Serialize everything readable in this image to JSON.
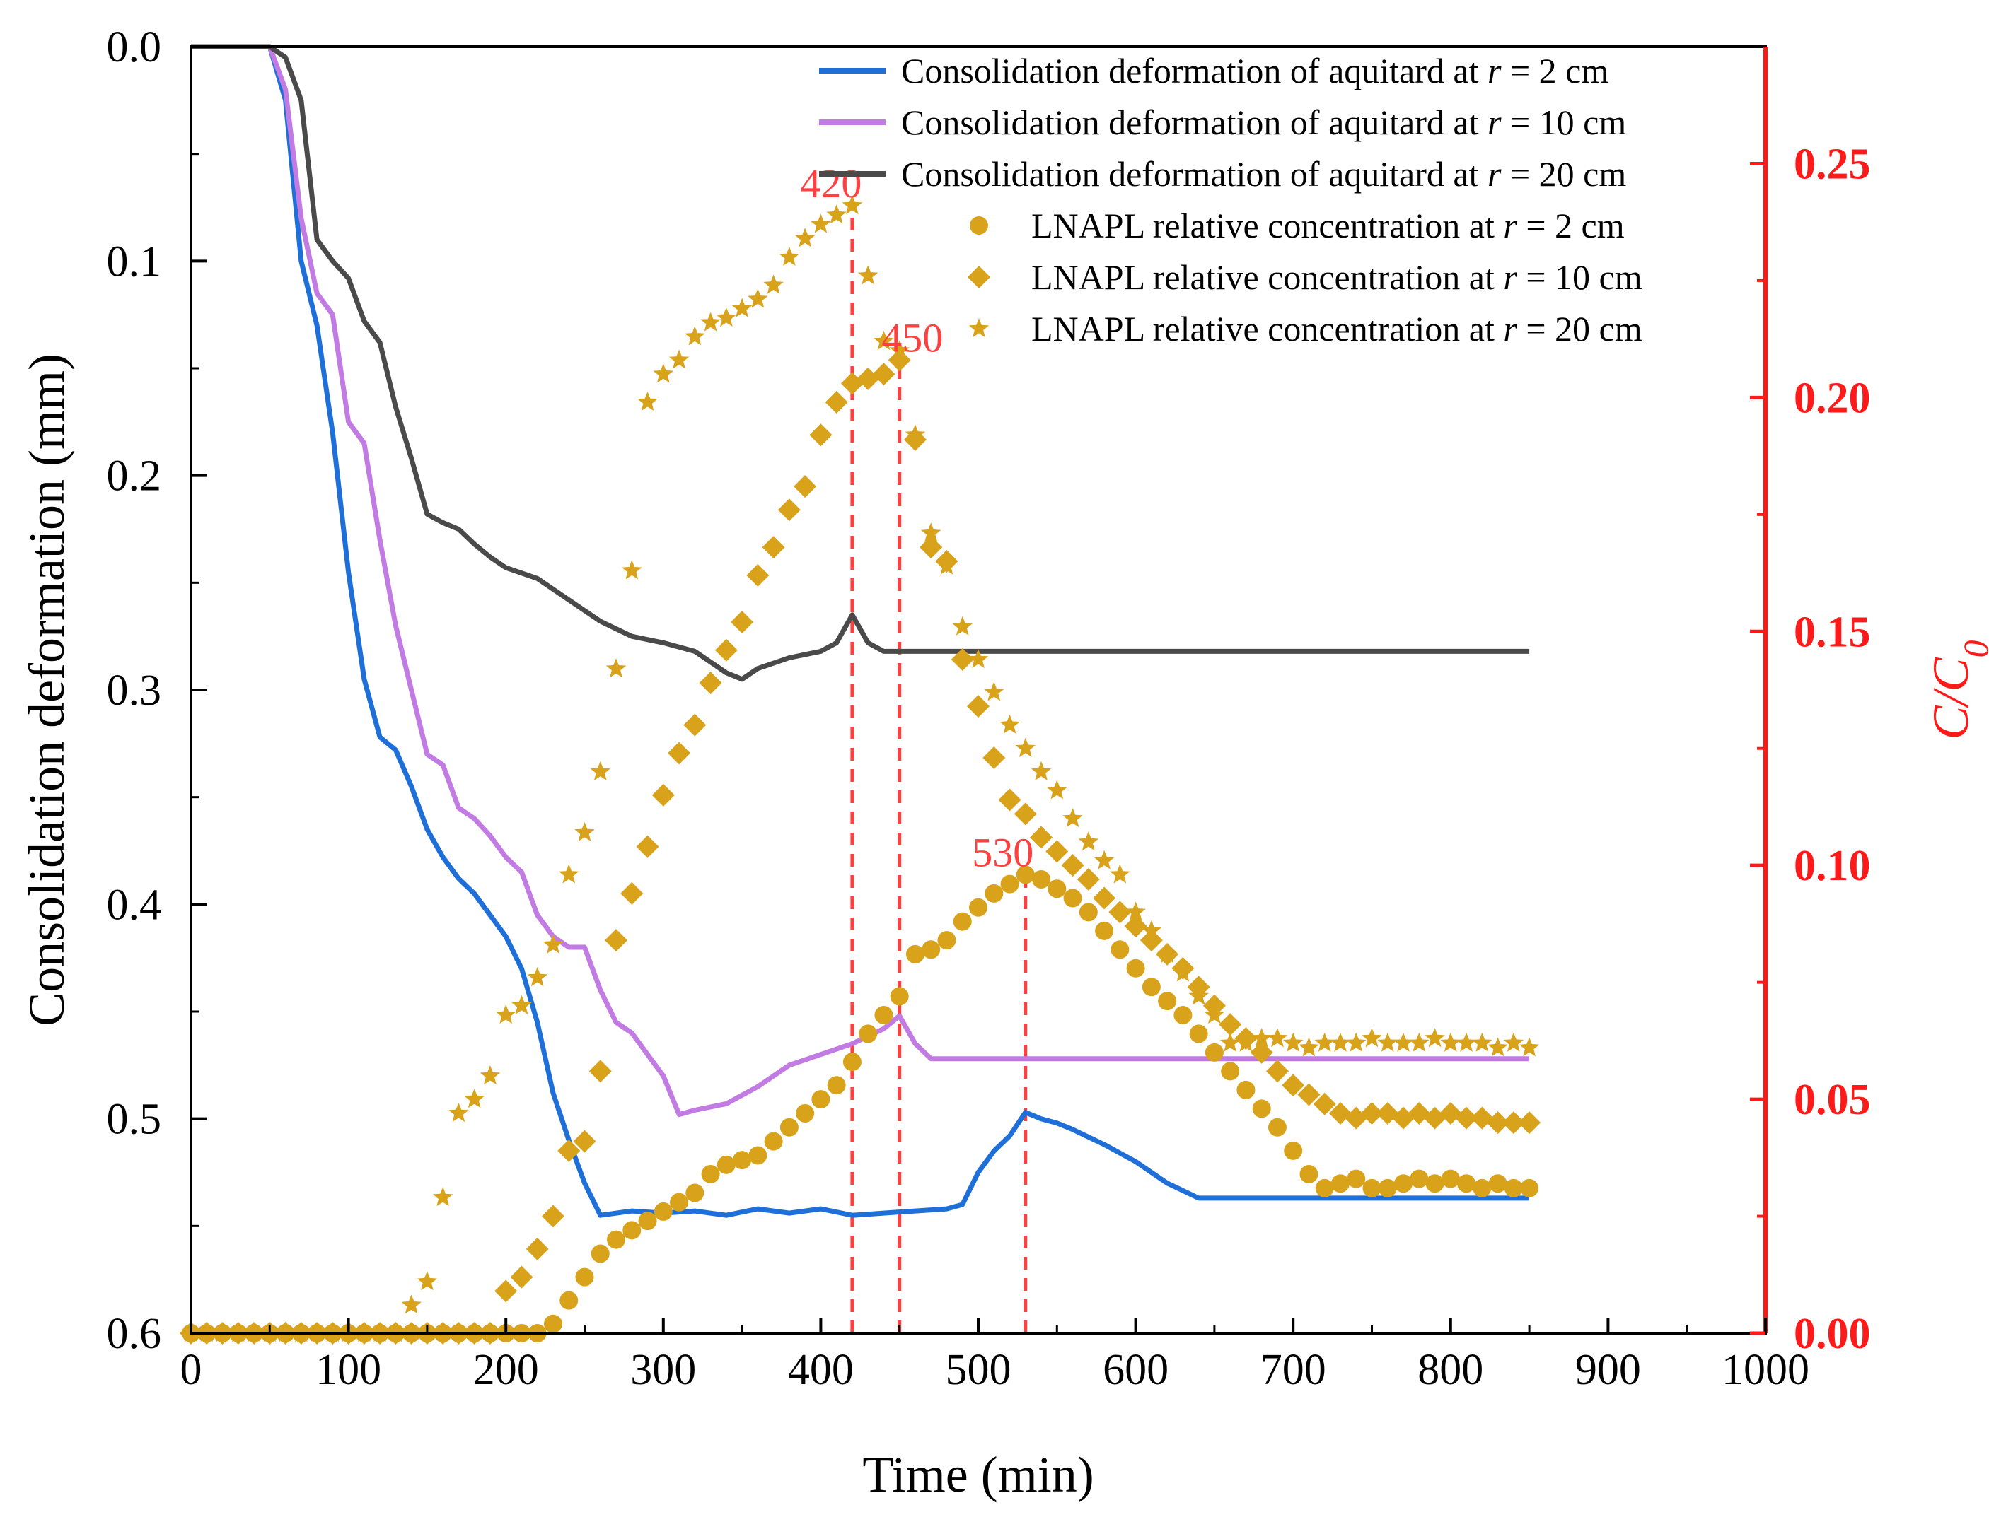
{
  "chart_data": {
    "type": "line",
    "xlabel": "Time (min)",
    "ylabel": "Consolidation deformation (mm)",
    "y2label": "C/C0",
    "xlim": [
      0,
      1000
    ],
    "ylim": [
      0,
      0.6
    ],
    "y_inverted": true,
    "y2lim": [
      0,
      0.275
    ],
    "x_ticks": [
      0,
      100,
      200,
      300,
      400,
      500,
      600,
      700,
      800,
      900,
      1000
    ],
    "y_ticks": [
      "0.0",
      "0.1",
      "0.2",
      "0.3",
      "0.4",
      "0.5",
      "0.6"
    ],
    "y2_ticks": [
      "0.00",
      "0.05",
      "0.10",
      "0.15",
      "0.20",
      "0.25"
    ],
    "grid": false,
    "legend_position": "top-right",
    "colors": {
      "blue": "#1e70d8",
      "purple": "#c17be3",
      "dark": "#4a4a4a",
      "gold": "#d9a21b",
      "red_axis": "#ff1a1a",
      "annotation": "#ff4040"
    },
    "series": [
      {
        "name": "Consolidation deformation of aquitard at r = 2 cm",
        "axis": "left",
        "kind": "line",
        "color_key": "blue",
        "x": [
          0,
          50,
          60,
          70,
          80,
          90,
          100,
          110,
          120,
          130,
          140,
          150,
          160,
          170,
          180,
          190,
          200,
          210,
          220,
          230,
          240,
          250,
          260,
          280,
          300,
          320,
          340,
          360,
          380,
          400,
          420,
          440,
          460,
          480,
          490,
          500,
          510,
          520,
          530,
          540,
          550,
          560,
          580,
          600,
          620,
          640,
          700,
          750,
          800,
          850
        ],
        "values": [
          0.0,
          0.0,
          0.025,
          0.1,
          0.13,
          0.18,
          0.245,
          0.295,
          0.322,
          0.328,
          0.345,
          0.365,
          0.378,
          0.388,
          0.395,
          0.405,
          0.415,
          0.43,
          0.455,
          0.488,
          0.51,
          0.53,
          0.545,
          0.543,
          0.544,
          0.543,
          0.545,
          0.542,
          0.544,
          0.542,
          0.545,
          0.544,
          0.543,
          0.542,
          0.54,
          0.525,
          0.515,
          0.508,
          0.497,
          0.5,
          0.502,
          0.505,
          0.512,
          0.52,
          0.53,
          0.537,
          0.537,
          0.537,
          0.537,
          0.537
        ]
      },
      {
        "name": "Consolidation deformation of aquitard at r = 10 cm",
        "axis": "left",
        "kind": "line",
        "color_key": "purple",
        "x": [
          0,
          50,
          60,
          70,
          80,
          90,
          100,
          110,
          120,
          130,
          140,
          150,
          160,
          170,
          180,
          190,
          200,
          210,
          220,
          230,
          240,
          250,
          260,
          270,
          280,
          290,
          300,
          310,
          320,
          340,
          360,
          380,
          400,
          420,
          440,
          450,
          460,
          470,
          500,
          600,
          700,
          800,
          850
        ],
        "values": [
          0.0,
          0.0,
          0.02,
          0.08,
          0.115,
          0.125,
          0.175,
          0.185,
          0.23,
          0.27,
          0.3,
          0.33,
          0.335,
          0.355,
          0.36,
          0.368,
          0.378,
          0.385,
          0.405,
          0.415,
          0.42,
          0.42,
          0.44,
          0.455,
          0.46,
          0.47,
          0.48,
          0.498,
          0.496,
          0.493,
          0.485,
          0.475,
          0.47,
          0.465,
          0.458,
          0.452,
          0.465,
          0.472,
          0.472,
          0.472,
          0.472,
          0.472,
          0.472
        ]
      },
      {
        "name": "Consolidation deformation of aquitard at r = 20 cm",
        "axis": "left",
        "kind": "line",
        "color_key": "dark",
        "x": [
          0,
          50,
          60,
          70,
          80,
          90,
          100,
          110,
          120,
          130,
          140,
          150,
          160,
          170,
          180,
          190,
          200,
          220,
          240,
          260,
          280,
          300,
          320,
          340,
          350,
          360,
          380,
          400,
          410,
          420,
          430,
          440,
          450,
          500,
          600,
          700,
          800,
          850
        ],
        "values": [
          0.0,
          0.0,
          0.005,
          0.025,
          0.09,
          0.1,
          0.108,
          0.128,
          0.138,
          0.168,
          0.192,
          0.218,
          0.222,
          0.225,
          0.232,
          0.238,
          0.243,
          0.248,
          0.258,
          0.268,
          0.275,
          0.278,
          0.282,
          0.292,
          0.295,
          0.29,
          0.285,
          0.282,
          0.278,
          0.265,
          0.278,
          0.282,
          0.282,
          0.282,
          0.282,
          0.282,
          0.282,
          0.282
        ]
      },
      {
        "name": "LNAPL relative concentration at r = 2 cm",
        "axis": "right",
        "kind": "scatter",
        "marker": "circle",
        "color_key": "gold",
        "x": [
          0,
          10,
          20,
          30,
          40,
          50,
          60,
          70,
          80,
          90,
          100,
          110,
          120,
          130,
          140,
          150,
          160,
          170,
          180,
          190,
          200,
          210,
          220,
          230,
          240,
          250,
          260,
          270,
          280,
          290,
          300,
          310,
          320,
          330,
          340,
          350,
          360,
          370,
          380,
          390,
          400,
          410,
          420,
          430,
          440,
          450,
          460,
          470,
          480,
          490,
          500,
          510,
          520,
          530,
          540,
          550,
          560,
          570,
          580,
          590,
          600,
          610,
          620,
          630,
          640,
          650,
          660,
          670,
          680,
          690,
          700,
          710,
          720,
          730,
          740,
          750,
          760,
          770,
          780,
          790,
          800,
          810,
          820,
          830,
          840,
          850
        ],
        "values": [
          0,
          0,
          0,
          0,
          0,
          0,
          0,
          0,
          0,
          0,
          0,
          0,
          0,
          0,
          0,
          0,
          0,
          0,
          0,
          0,
          0,
          0,
          0,
          0.002,
          0.007,
          0.012,
          0.017,
          0.02,
          0.022,
          0.024,
          0.026,
          0.028,
          0.03,
          0.034,
          0.036,
          0.037,
          0.038,
          0.041,
          0.044,
          0.047,
          0.05,
          0.053,
          0.058,
          0.064,
          0.068,
          0.072,
          0.081,
          0.082,
          0.084,
          0.088,
          0.091,
          0.094,
          0.096,
          0.098,
          0.097,
          0.095,
          0.093,
          0.09,
          0.086,
          0.082,
          0.078,
          0.074,
          0.071,
          0.068,
          0.064,
          0.06,
          0.056,
          0.052,
          0.048,
          0.044,
          0.039,
          0.034,
          0.031,
          0.032,
          0.033,
          0.031,
          0.031,
          0.032,
          0.033,
          0.032,
          0.033,
          0.032,
          0.031,
          0.032,
          0.031,
          0.031
        ]
      },
      {
        "name": "LNAPL relative concentration at r = 10 cm",
        "axis": "right",
        "kind": "scatter",
        "marker": "diamond",
        "color_key": "gold",
        "x": [
          0,
          10,
          20,
          30,
          40,
          50,
          60,
          70,
          80,
          90,
          100,
          110,
          120,
          130,
          140,
          150,
          160,
          170,
          180,
          190,
          200,
          210,
          220,
          230,
          240,
          250,
          260,
          270,
          280,
          290,
          300,
          310,
          320,
          330,
          340,
          350,
          360,
          370,
          380,
          390,
          400,
          410,
          420,
          430,
          440,
          450,
          460,
          470,
          480,
          490,
          500,
          510,
          520,
          530,
          540,
          550,
          560,
          570,
          580,
          590,
          600,
          610,
          620,
          630,
          640,
          650,
          660,
          670,
          680,
          690,
          700,
          710,
          720,
          730,
          740,
          750,
          760,
          770,
          780,
          790,
          800,
          810,
          820,
          830,
          840,
          850
        ],
        "values": [
          0,
          0,
          0,
          0,
          0,
          0,
          0,
          0,
          0,
          0,
          0,
          0,
          0,
          0,
          0,
          0,
          0,
          0,
          0,
          0,
          0.009,
          0.012,
          0.018,
          0.025,
          0.039,
          0.041,
          0.056,
          0.084,
          0.094,
          0.104,
          0.115,
          0.124,
          0.13,
          0.139,
          0.146,
          0.152,
          0.162,
          0.168,
          0.176,
          0.181,
          0.192,
          0.199,
          0.203,
          0.204,
          0.205,
          0.208,
          0.191,
          0.168,
          0.165,
          0.144,
          0.134,
          0.123,
          0.114,
          0.111,
          0.106,
          0.103,
          0.1,
          0.097,
          0.093,
          0.09,
          0.087,
          0.084,
          0.081,
          0.078,
          0.074,
          0.07,
          0.066,
          0.063,
          0.06,
          0.056,
          0.053,
          0.051,
          0.049,
          0.047,
          0.046,
          0.047,
          0.047,
          0.046,
          0.047,
          0.046,
          0.047,
          0.046,
          0.046,
          0.045,
          0.045,
          0.045
        ]
      },
      {
        "name": "LNAPL relative concentration at r = 20 cm",
        "axis": "right",
        "kind": "scatter",
        "marker": "star",
        "color_key": "gold",
        "x": [
          0,
          10,
          20,
          30,
          40,
          50,
          60,
          70,
          80,
          90,
          100,
          110,
          120,
          130,
          140,
          150,
          160,
          170,
          180,
          190,
          200,
          210,
          220,
          230,
          240,
          250,
          260,
          270,
          280,
          290,
          300,
          310,
          320,
          330,
          340,
          350,
          360,
          370,
          380,
          390,
          400,
          410,
          420,
          430,
          440,
          450,
          460,
          470,
          480,
          490,
          500,
          510,
          520,
          530,
          540,
          550,
          560,
          570,
          580,
          590,
          600,
          610,
          620,
          630,
          640,
          650,
          660,
          670,
          680,
          690,
          700,
          710,
          720,
          730,
          740,
          750,
          760,
          770,
          780,
          790,
          800,
          810,
          820,
          830,
          840,
          850
        ],
        "values": [
          0,
          0,
          0,
          0,
          0,
          0,
          0,
          0,
          0,
          0,
          0,
          0,
          0,
          0,
          0.006,
          0.011,
          0.029,
          0.047,
          0.05,
          0.055,
          0.068,
          0.07,
          0.076,
          0.083,
          0.098,
          0.107,
          0.12,
          0.142,
          0.163,
          0.199,
          0.205,
          0.208,
          0.213,
          0.216,
          0.217,
          0.219,
          0.221,
          0.224,
          0.23,
          0.234,
          0.237,
          0.239,
          0.241,
          0.226,
          0.212,
          0.21,
          0.192,
          0.171,
          0.164,
          0.151,
          0.144,
          0.137,
          0.13,
          0.125,
          0.12,
          0.116,
          0.11,
          0.105,
          0.101,
          0.098,
          0.09,
          0.086,
          0.081,
          0.077,
          0.072,
          0.068,
          0.062,
          0.062,
          0.063,
          0.063,
          0.062,
          0.061,
          0.062,
          0.062,
          0.062,
          0.063,
          0.062,
          0.062,
          0.062,
          0.063,
          0.062,
          0.062,
          0.062,
          0.061,
          0.062,
          0.061
        ]
      }
    ],
    "annotations": [
      {
        "label": "420",
        "x": 420,
        "line_to_value": 0.241
      },
      {
        "label": "450",
        "x": 450,
        "line_to_value": 0.208
      },
      {
        "label": "530",
        "x": 530,
        "line_to_value": 0.098
      }
    ]
  }
}
